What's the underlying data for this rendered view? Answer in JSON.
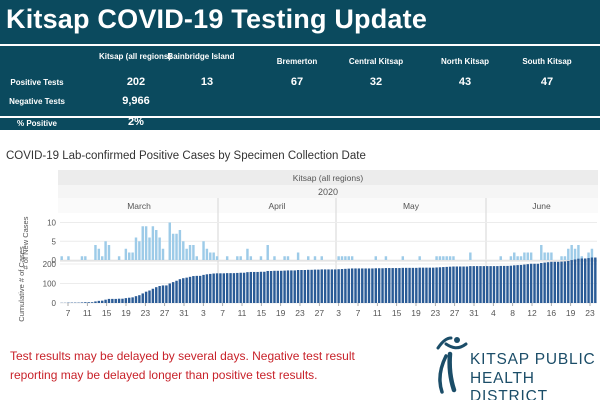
{
  "header": {
    "title": "Kitsap COVID-19 Testing Update"
  },
  "stats_table": {
    "columns": [
      "Kitsap (all regions)",
      "Bainbridge Island",
      "Bremerton",
      "Central Kitsap",
      "North Kitsap",
      "South Kitsap"
    ],
    "rows": [
      {
        "label": "Positive Tests",
        "values": [
          "202",
          "13",
          "67",
          "32",
          "43",
          "47"
        ]
      },
      {
        "label": "Negative Tests",
        "values": [
          "9,966"
        ]
      },
      {
        "label": "% Positive",
        "values": [
          "2%"
        ]
      }
    ]
  },
  "chart_title": "COVID-19 Lab-confirmed Positive Cases by Specimen Collection Date",
  "chart_data": {
    "type": "bar",
    "title": "COVID-19 Lab-confirmed Positive Cases by Specimen Collection Date",
    "panel_label": "Kitsap (all regions)",
    "year_label": "2020",
    "months": [
      "March",
      "April",
      "May",
      "June"
    ],
    "x_tick_labels": [
      "7",
      "11",
      "15",
      "19",
      "23",
      "27",
      "31",
      "3",
      "7",
      "11",
      "15",
      "19",
      "23",
      "27",
      "3",
      "7",
      "11",
      "15",
      "19",
      "23",
      "27",
      "31",
      "4",
      "8",
      "12",
      "16",
      "19",
      "23"
    ],
    "panels": [
      {
        "ylabel": "# of New Cases",
        "ylim": [
          0,
          12
        ],
        "yticks": [
          "10",
          "5",
          "0"
        ],
        "values": [
          1,
          0,
          1,
          0,
          0,
          0,
          1,
          1,
          0,
          0,
          4,
          3,
          1,
          5,
          4,
          0,
          0,
          1,
          0,
          3,
          2,
          2,
          6,
          5,
          9,
          9,
          6,
          9,
          8,
          6,
          3,
          0,
          10,
          7,
          7,
          8,
          5,
          3,
          4,
          4,
          1,
          0,
          5,
          3,
          2,
          2,
          1,
          0,
          0,
          1,
          0,
          0,
          1,
          1,
          0,
          3,
          1,
          0,
          0,
          1,
          0,
          4,
          0,
          1,
          0,
          0,
          1,
          1,
          0,
          0,
          2,
          0,
          0,
          1,
          0,
          1,
          0,
          1,
          0,
          0,
          0,
          0,
          1,
          1,
          1,
          1,
          1,
          0,
          0,
          0,
          0,
          0,
          0,
          1,
          0,
          0,
          1,
          0,
          0,
          0,
          0,
          1,
          0,
          0,
          0,
          0,
          1,
          0,
          0,
          0,
          0,
          1,
          1,
          1,
          1,
          1,
          1,
          0,
          0,
          0,
          0,
          2,
          0,
          0,
          0,
          0,
          0,
          0,
          0,
          0,
          1,
          0,
          0,
          1,
          2,
          1,
          1,
          2,
          2,
          2,
          0,
          0,
          4,
          2,
          2,
          2,
          0,
          0,
          1,
          1,
          3,
          4,
          3,
          4,
          1,
          0,
          2,
          3,
          0
        ]
      },
      {
        "ylabel": "Cumulative # of Cases",
        "ylim": [
          0,
          210
        ],
        "yticks": [
          "200",
          "100",
          "0"
        ],
        "values": [
          1,
          1,
          2,
          2,
          2,
          2,
          3,
          4,
          4,
          4,
          8,
          11,
          12,
          17,
          21,
          21,
          21,
          22,
          22,
          25,
          27,
          29,
          35,
          40,
          49,
          58,
          64,
          73,
          81,
          87,
          90,
          90,
          100,
          107,
          114,
          122,
          127,
          130,
          134,
          138,
          139,
          139,
          144,
          147,
          149,
          151,
          152,
          152,
          152,
          153,
          153,
          153,
          154,
          155,
          155,
          158,
          159,
          159,
          159,
          160,
          160,
          164,
          164,
          165,
          165,
          165,
          166,
          167,
          167,
          167,
          169,
          169,
          169,
          170,
          170,
          171,
          171,
          172,
          172,
          172,
          172,
          172,
          173,
          174,
          175,
          176,
          177,
          177,
          177,
          177,
          177,
          177,
          177,
          178,
          178,
          178,
          179,
          179,
          179,
          179,
          179,
          180,
          180,
          180,
          180,
          180,
          181,
          181,
          181,
          181,
          181,
          182,
          183,
          184,
          185,
          186,
          187,
          187,
          187,
          187,
          187,
          189,
          189,
          189,
          189,
          189,
          189,
          189,
          189,
          189,
          190,
          190,
          190,
          191,
          193,
          194,
          195,
          197,
          199,
          201,
          201,
          201,
          205,
          207,
          209,
          211,
          211,
          211,
          212,
          213,
          216,
          220,
          223,
          227,
          228,
          228,
          230,
          233,
          233
        ]
      }
    ],
    "bar_color_new": "#9dcbe8",
    "bar_color_cumulative": "#2a5b96",
    "grid": true
  },
  "disclaimer_text": "Test results may be delayed by several days. Negative test result reporting may be delayed longer than positive test results.",
  "logo": {
    "line1": "KITSAP PUBLIC",
    "line2": "HEALTH DISTRICT",
    "color": "#1b4d68",
    "icon": "health-district-figure-icon"
  }
}
